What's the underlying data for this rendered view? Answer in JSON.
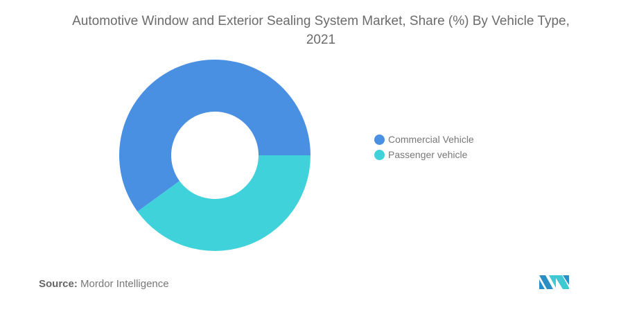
{
  "chart_data": {
    "type": "pie",
    "variant": "donut",
    "title": "Automotive Window and Exterior Sealing System Market, Share (%) By Vehicle Type, 2021",
    "categories": [
      "Commercial Vehicle",
      "Passenger vehicle"
    ],
    "values": [
      60,
      40
    ],
    "unit": "%",
    "colors": [
      "#4a90e2",
      "#40d2da"
    ],
    "legend_position": "right"
  },
  "source": {
    "label": "Source:",
    "text": "Mordor Intelligence"
  },
  "logo": {
    "text": "Mordor Intelligence"
  }
}
